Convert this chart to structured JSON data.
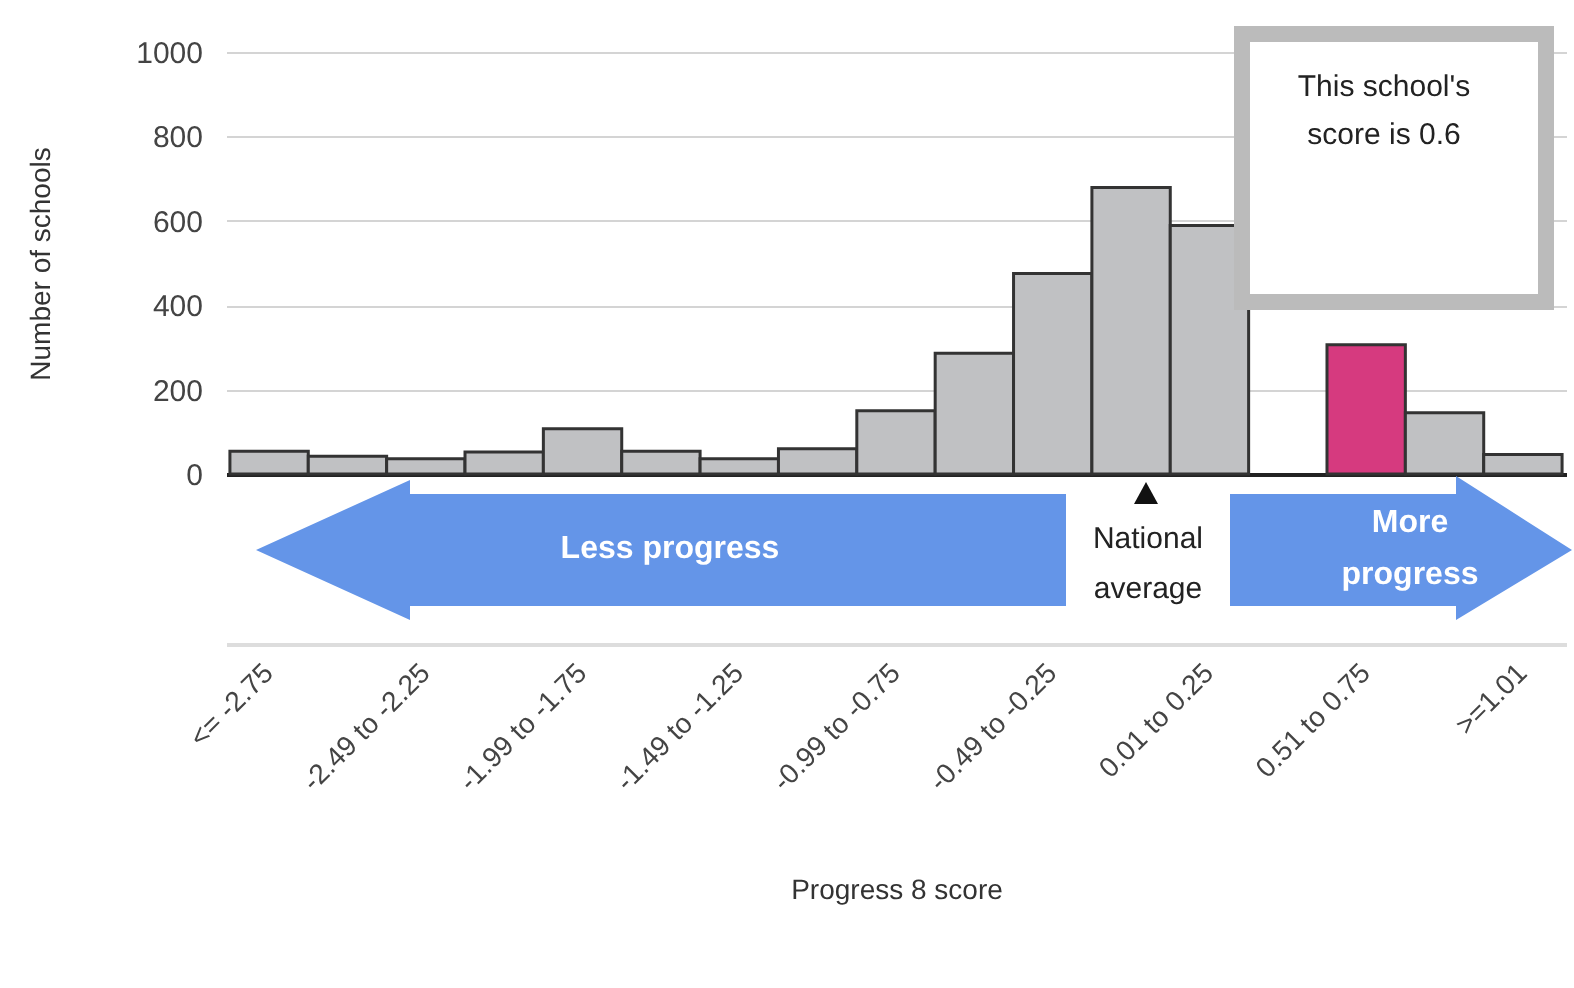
{
  "chart_data": {
    "type": "bar",
    "xlabel": "Progress 8 score",
    "ylabel": "Number of schools",
    "categories": [
      "<= -2.75",
      null,
      "-2.49 to -2.25",
      null,
      "-1.99 to -1.75",
      null,
      "-1.49 to -1.25",
      null,
      "-0.99 to -0.75",
      null,
      "-0.49 to -0.25",
      null,
      "0.01 to 0.25",
      null,
      "0.51 to 0.75",
      null,
      ">=1.01"
    ],
    "values": [
      54,
      42,
      36,
      52,
      107,
      54,
      36,
      60,
      150,
      286,
      475,
      679,
      589,
      null,
      306,
      145,
      46
    ],
    "colors": [
      "#c0c1c3",
      "#c0c1c3",
      "#c0c1c3",
      "#c0c1c3",
      "#c0c1c3",
      "#c0c1c3",
      "#c0c1c3",
      "#c0c1c3",
      "#c0c1c3",
      "#c0c1c3",
      "#c0c1c3",
      "#c0c1c3",
      "#c0c1c3",
      "#c0c1c3",
      "#d63a7f",
      "#c0c1c3",
      "#c0c1c3"
    ],
    "ylim": [
      0,
      1000
    ],
    "yticks": [
      0,
      200,
      400,
      600,
      800,
      {
        "value": 1000,
        "label": "1000"
      }
    ],
    "grid": "y",
    "annotations": [
      "Less progress",
      "National average",
      "More progress",
      "This school's score is 0.6"
    ]
  }
}
